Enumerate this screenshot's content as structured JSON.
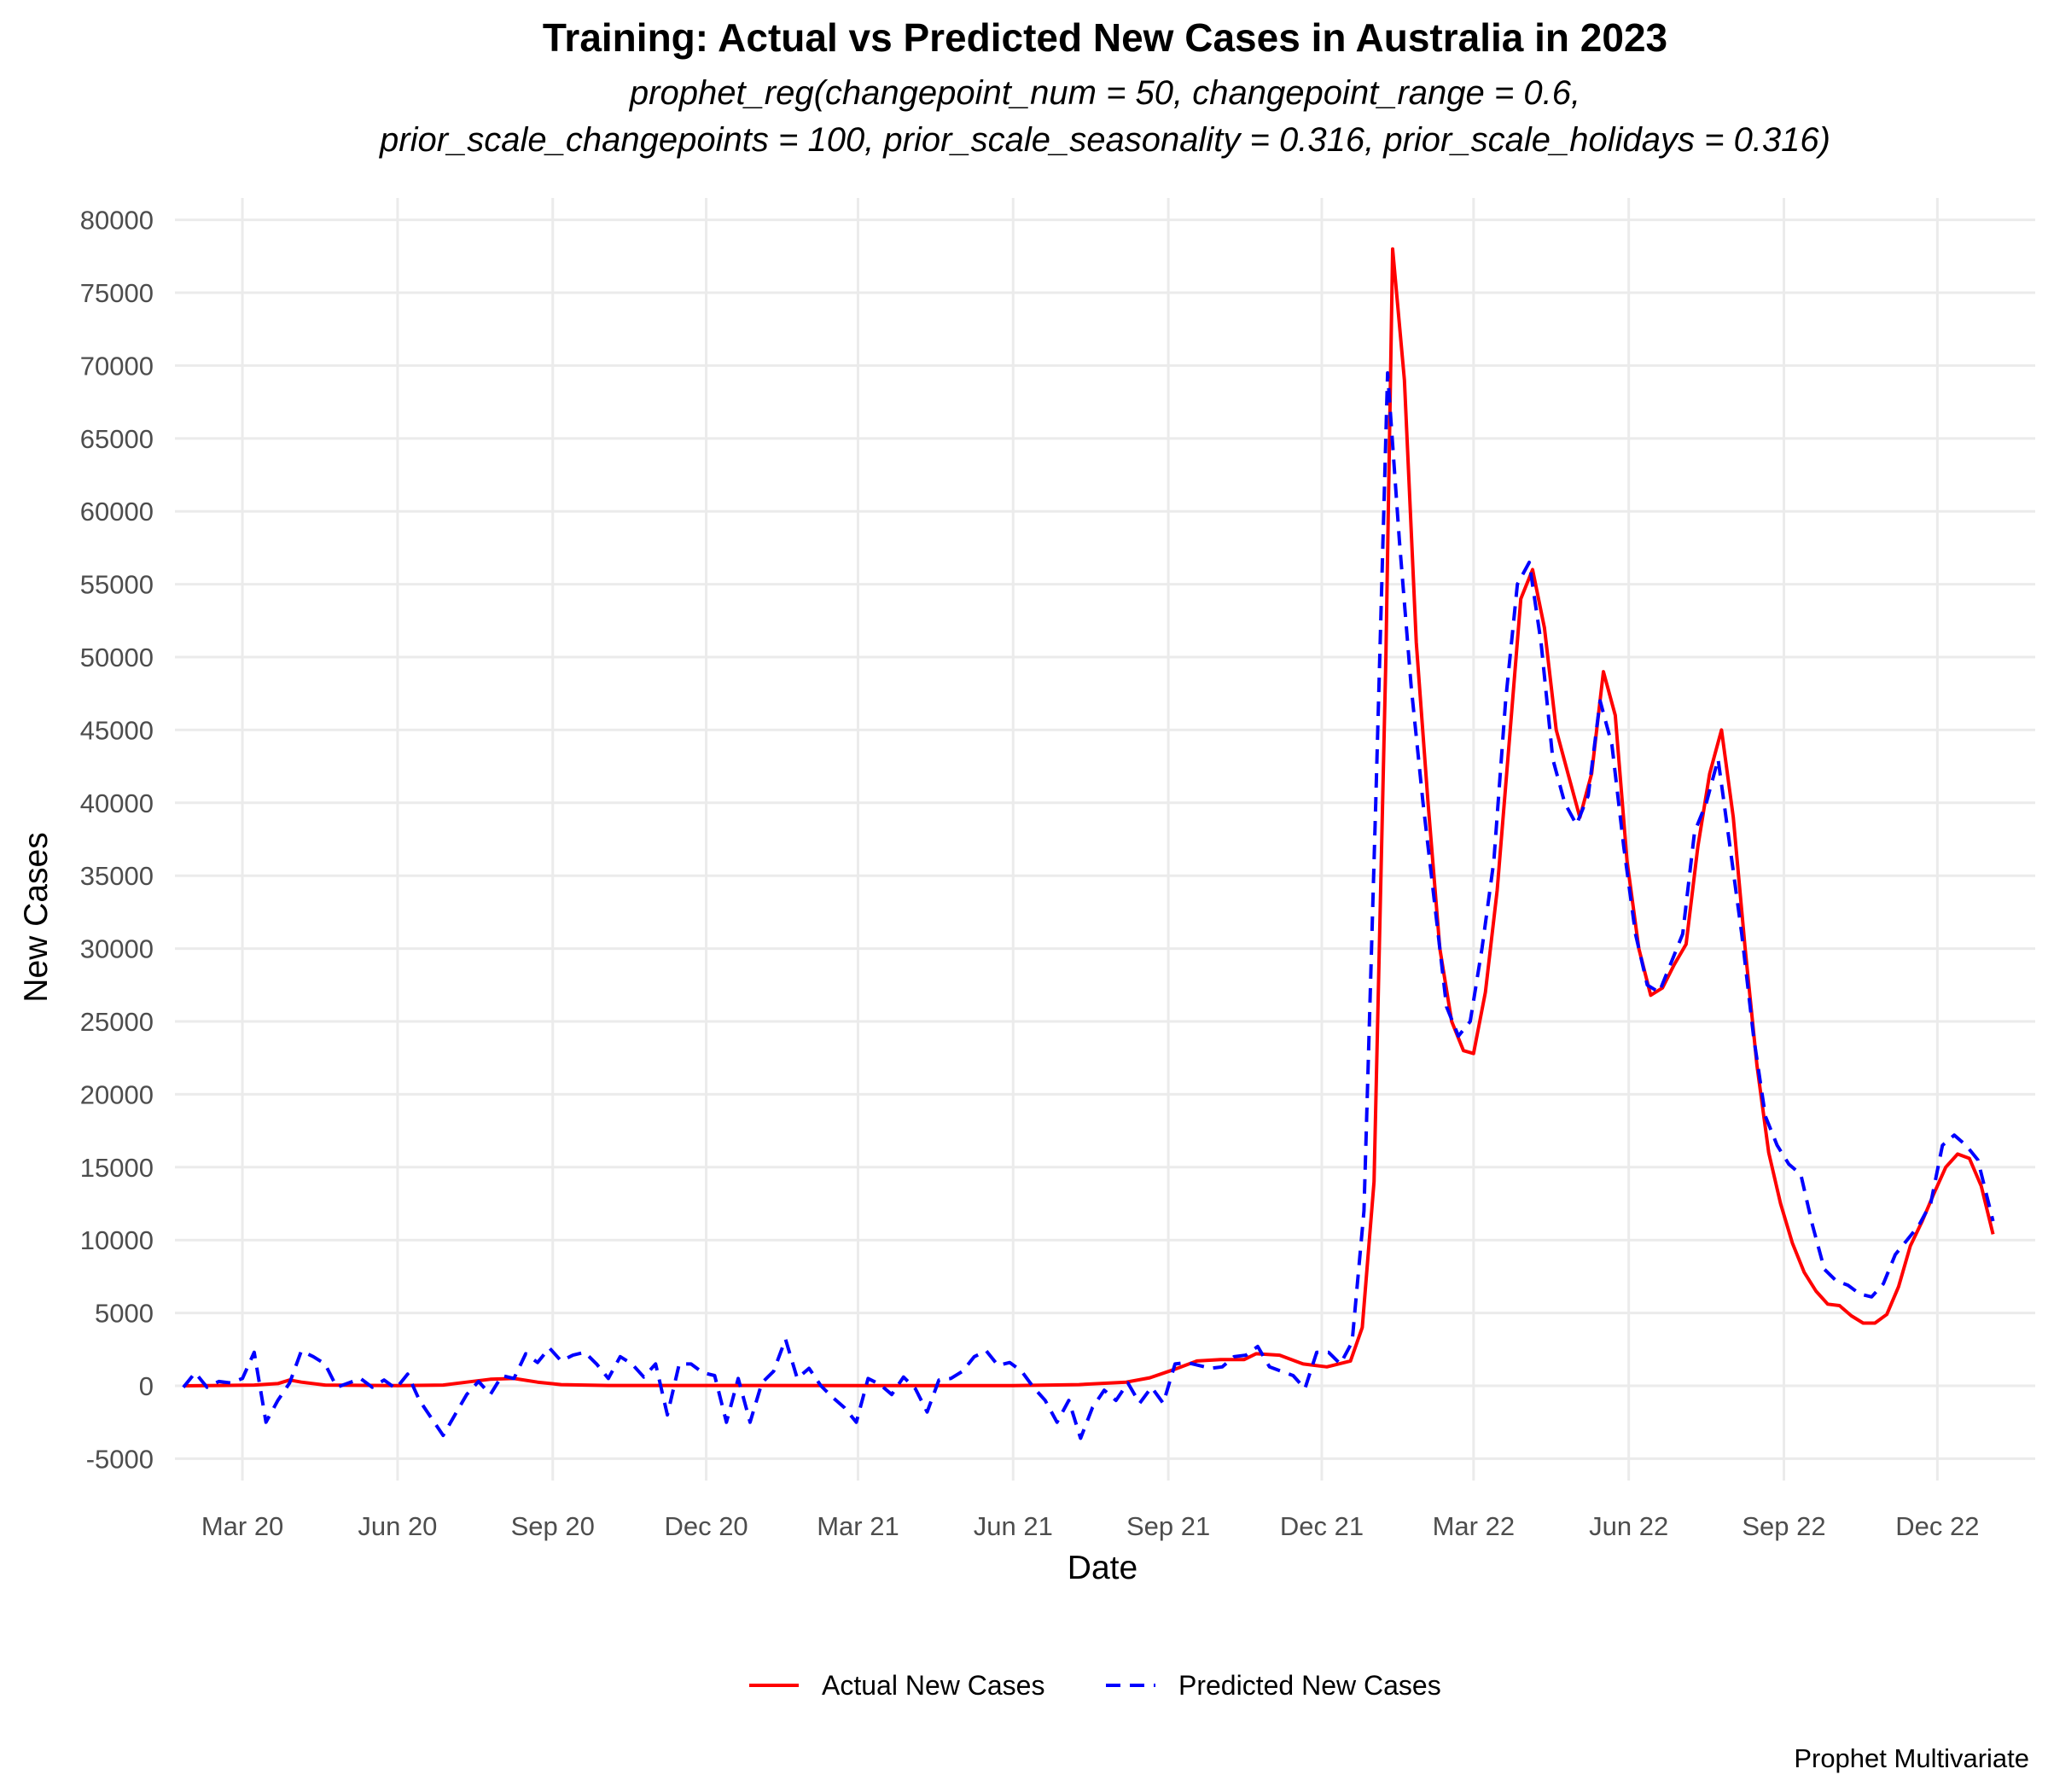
{
  "chart_data": {
    "type": "line",
    "title": "Training: Actual vs Predicted New Cases in Australia in 2023",
    "subtitle_lines": [
      "prophet_reg(changepoint_num = 50, changepoint_range = 0.6,",
      "prior_scale_changepoints = 100, prior_scale_seasonality = 0.316, prior_scale_holidays = 0.316)"
    ],
    "xlabel": "Date",
    "ylabel": "New Cases",
    "caption": "Prophet Multivariate",
    "legend_position": "bottom",
    "grid": true,
    "xlim": [
      "2020-01-21",
      "2023-01-28"
    ],
    "ylim": [
      -6500,
      81500
    ],
    "y_ticks": [
      -5000,
      0,
      5000,
      10000,
      15000,
      20000,
      25000,
      30000,
      35000,
      40000,
      45000,
      50000,
      55000,
      60000,
      65000,
      70000,
      75000,
      80000
    ],
    "x_ticks": [
      {
        "date": "2020-03-01",
        "label": "Mar 20"
      },
      {
        "date": "2020-06-01",
        "label": "Jun 20"
      },
      {
        "date": "2020-09-01",
        "label": "Sep 20"
      },
      {
        "date": "2020-12-01",
        "label": "Dec 20"
      },
      {
        "date": "2021-03-01",
        "label": "Mar 21"
      },
      {
        "date": "2021-06-01",
        "label": "Jun 21"
      },
      {
        "date": "2021-09-01",
        "label": "Sep 21"
      },
      {
        "date": "2021-12-01",
        "label": "Dec 21"
      },
      {
        "date": "2022-03-01",
        "label": "Mar 22"
      },
      {
        "date": "2022-06-01",
        "label": "Jun 22"
      },
      {
        "date": "2022-09-01",
        "label": "Sep 22"
      },
      {
        "date": "2022-12-01",
        "label": "Dec 22"
      }
    ],
    "series": [
      {
        "name": "Actual New Cases",
        "color": "#ff0000",
        "dash": "solid",
        "points": [
          [
            "2020-01-26",
            0
          ],
          [
            "2020-02-16",
            20
          ],
          [
            "2020-03-08",
            50
          ],
          [
            "2020-03-22",
            150
          ],
          [
            "2020-03-29",
            400
          ],
          [
            "2020-04-05",
            250
          ],
          [
            "2020-04-19",
            50
          ],
          [
            "2020-06-01",
            10
          ],
          [
            "2020-06-28",
            50
          ],
          [
            "2020-07-12",
            250
          ],
          [
            "2020-07-26",
            450
          ],
          [
            "2020-08-09",
            500
          ],
          [
            "2020-08-23",
            250
          ],
          [
            "2020-09-06",
            80
          ],
          [
            "2020-10-04",
            20
          ],
          [
            "2021-06-01",
            10
          ],
          [
            "2021-07-10",
            80
          ],
          [
            "2021-08-07",
            250
          ],
          [
            "2021-08-21",
            550
          ],
          [
            "2021-09-04",
            1100
          ],
          [
            "2021-09-18",
            1700
          ],
          [
            "2021-10-02",
            1800
          ],
          [
            "2021-10-16",
            1800
          ],
          [
            "2021-10-23",
            2200
          ],
          [
            "2021-11-06",
            2100
          ],
          [
            "2021-11-20",
            1500
          ],
          [
            "2021-12-04",
            1300
          ],
          [
            "2021-12-18",
            1700
          ],
          [
            "2021-12-25",
            4000
          ],
          [
            "2022-01-01",
            14000
          ],
          [
            "2022-01-08",
            50000
          ],
          [
            "2022-01-12",
            78000
          ],
          [
            "2022-01-19",
            69000
          ],
          [
            "2022-01-26",
            51000
          ],
          [
            "2022-02-02",
            40000
          ],
          [
            "2022-02-09",
            30000
          ],
          [
            "2022-02-16",
            25000
          ],
          [
            "2022-02-23",
            23000
          ],
          [
            "2022-03-01",
            22800
          ],
          [
            "2022-03-08",
            27000
          ],
          [
            "2022-03-15",
            34000
          ],
          [
            "2022-03-22",
            44000
          ],
          [
            "2022-03-29",
            54000
          ],
          [
            "2022-04-05",
            56000
          ],
          [
            "2022-04-12",
            52000
          ],
          [
            "2022-04-19",
            45000
          ],
          [
            "2022-04-26",
            42000
          ],
          [
            "2022-05-03",
            39000
          ],
          [
            "2022-05-10",
            42000
          ],
          [
            "2022-05-17",
            49000
          ],
          [
            "2022-05-24",
            46000
          ],
          [
            "2022-05-31",
            36000
          ],
          [
            "2022-06-07",
            30000
          ],
          [
            "2022-06-14",
            26800
          ],
          [
            "2022-06-21",
            27300
          ],
          [
            "2022-06-28",
            28900
          ],
          [
            "2022-07-05",
            30300
          ],
          [
            "2022-07-12",
            37000
          ],
          [
            "2022-07-19",
            42000
          ],
          [
            "2022-07-26",
            45000
          ],
          [
            "2022-08-02",
            39000
          ],
          [
            "2022-08-09",
            30000
          ],
          [
            "2022-08-16",
            22000
          ],
          [
            "2022-08-23",
            16000
          ],
          [
            "2022-08-30",
            12500
          ],
          [
            "2022-09-06",
            9800
          ],
          [
            "2022-09-13",
            7800
          ],
          [
            "2022-09-20",
            6500
          ],
          [
            "2022-09-27",
            5600
          ],
          [
            "2022-10-04",
            5500
          ],
          [
            "2022-10-11",
            4800
          ],
          [
            "2022-10-18",
            4300
          ],
          [
            "2022-10-25",
            4300
          ],
          [
            "2022-11-01",
            4900
          ],
          [
            "2022-11-08",
            6800
          ],
          [
            "2022-11-15",
            9600
          ],
          [
            "2022-11-22",
            11300
          ],
          [
            "2022-11-29",
            13200
          ],
          [
            "2022-12-06",
            15000
          ],
          [
            "2022-12-13",
            15900
          ],
          [
            "2022-12-20",
            15600
          ],
          [
            "2022-12-27",
            13700
          ],
          [
            "2023-01-03",
            10400
          ]
        ]
      },
      {
        "name": "Predicted New Cases",
        "color": "#0000ff",
        "dash": "dashed",
        "points": [
          [
            "2020-01-26",
            -100
          ],
          [
            "2020-02-02",
            900
          ],
          [
            "2020-02-09",
            -100
          ],
          [
            "2020-02-16",
            300
          ],
          [
            "2020-02-23",
            200
          ],
          [
            "2020-03-01",
            500
          ],
          [
            "2020-03-08",
            2300
          ],
          [
            "2020-03-15",
            -2500
          ],
          [
            "2020-03-22",
            -1000
          ],
          [
            "2020-03-29",
            200
          ],
          [
            "2020-04-05",
            2400
          ],
          [
            "2020-04-12",
            2000
          ],
          [
            "2020-04-19",
            1500
          ],
          [
            "2020-04-26",
            -100
          ],
          [
            "2020-05-03",
            200
          ],
          [
            "2020-05-10",
            500
          ],
          [
            "2020-05-17",
            -100
          ],
          [
            "2020-05-24",
            400
          ],
          [
            "2020-05-31",
            -200
          ],
          [
            "2020-06-07",
            800
          ],
          [
            "2020-06-14",
            -1000
          ],
          [
            "2020-06-21",
            -2200
          ],
          [
            "2020-06-28",
            -3400
          ],
          [
            "2020-07-05",
            -2000
          ],
          [
            "2020-07-12",
            -600
          ],
          [
            "2020-07-19",
            300
          ],
          [
            "2020-07-26",
            -600
          ],
          [
            "2020-08-02",
            700
          ],
          [
            "2020-08-09",
            500
          ],
          [
            "2020-08-16",
            2200
          ],
          [
            "2020-08-23",
            1600
          ],
          [
            "2020-08-30",
            2600
          ],
          [
            "2020-09-06",
            1700
          ],
          [
            "2020-09-13",
            2100
          ],
          [
            "2020-09-20",
            2300
          ],
          [
            "2020-09-27",
            1500
          ],
          [
            "2020-10-04",
            500
          ],
          [
            "2020-10-11",
            2000
          ],
          [
            "2020-10-18",
            1500
          ],
          [
            "2020-10-25",
            600
          ],
          [
            "2020-11-01",
            1500
          ],
          [
            "2020-11-08",
            -2000
          ],
          [
            "2020-11-15",
            1500
          ],
          [
            "2020-11-22",
            1500
          ],
          [
            "2020-11-29",
            900
          ],
          [
            "2020-12-06",
            700
          ],
          [
            "2020-12-13",
            -2500
          ],
          [
            "2020-12-20",
            500
          ],
          [
            "2020-12-27",
            -2500
          ],
          [
            "2021-01-03",
            200
          ],
          [
            "2021-01-10",
            1000
          ],
          [
            "2021-01-17",
            3200
          ],
          [
            "2021-01-24",
            500
          ],
          [
            "2021-01-31",
            1200
          ],
          [
            "2021-02-07",
            0
          ],
          [
            "2021-02-14",
            -800
          ],
          [
            "2021-02-21",
            -1500
          ],
          [
            "2021-02-28",
            -2500
          ],
          [
            "2021-03-07",
            500
          ],
          [
            "2021-03-14",
            100
          ],
          [
            "2021-03-21",
            -600
          ],
          [
            "2021-03-28",
            600
          ],
          [
            "2021-04-04",
            -200
          ],
          [
            "2021-04-11",
            -1800
          ],
          [
            "2021-04-18",
            400
          ],
          [
            "2021-04-25",
            500
          ],
          [
            "2021-05-02",
            1000
          ],
          [
            "2021-05-09",
            2000
          ],
          [
            "2021-05-16",
            2400
          ],
          [
            "2021-05-23",
            1400
          ],
          [
            "2021-05-30",
            1600
          ],
          [
            "2021-06-06",
            1000
          ],
          [
            "2021-06-13",
            -100
          ],
          [
            "2021-06-20",
            -1000
          ],
          [
            "2021-06-27",
            -2500
          ],
          [
            "2021-07-04",
            -1000
          ],
          [
            "2021-07-11",
            -3600
          ],
          [
            "2021-07-18",
            -1500
          ],
          [
            "2021-07-25",
            -300
          ],
          [
            "2021-08-01",
            -1000
          ],
          [
            "2021-08-08",
            200
          ],
          [
            "2021-08-15",
            -1200
          ],
          [
            "2021-08-22",
            -100
          ],
          [
            "2021-08-29",
            -1200
          ],
          [
            "2021-09-05",
            1500
          ],
          [
            "2021-09-12",
            1600
          ],
          [
            "2021-09-19",
            1400
          ],
          [
            "2021-09-26",
            1200
          ],
          [
            "2021-10-03",
            1300
          ],
          [
            "2021-10-10",
            2000
          ],
          [
            "2021-10-17",
            2100
          ],
          [
            "2021-10-24",
            2700
          ],
          [
            "2021-10-31",
            1300
          ],
          [
            "2021-11-07",
            1000
          ],
          [
            "2021-11-14",
            700
          ],
          [
            "2021-11-21",
            -200
          ],
          [
            "2021-11-28",
            2300
          ],
          [
            "2021-12-05",
            2300
          ],
          [
            "2021-12-12",
            1500
          ],
          [
            "2021-12-19",
            3000
          ],
          [
            "2021-12-26",
            12000
          ],
          [
            "2022-01-02",
            40000
          ],
          [
            "2022-01-09",
            69500
          ],
          [
            "2022-01-16",
            58000
          ],
          [
            "2022-01-23",
            48000
          ],
          [
            "2022-01-30",
            40000
          ],
          [
            "2022-02-06",
            33000
          ],
          [
            "2022-02-13",
            26000
          ],
          [
            "2022-02-20",
            24000
          ],
          [
            "2022-02-27",
            25000
          ],
          [
            "2022-03-06",
            30000
          ],
          [
            "2022-03-13",
            36000
          ],
          [
            "2022-03-20",
            47000
          ],
          [
            "2022-03-27",
            55000
          ],
          [
            "2022-04-03",
            56500
          ],
          [
            "2022-04-10",
            51000
          ],
          [
            "2022-04-17",
            43000
          ],
          [
            "2022-04-24",
            40000
          ],
          [
            "2022-05-01",
            38500
          ],
          [
            "2022-05-08",
            40500
          ],
          [
            "2022-05-15",
            47000
          ],
          [
            "2022-05-22",
            44000
          ],
          [
            "2022-05-29",
            37000
          ],
          [
            "2022-06-05",
            31000
          ],
          [
            "2022-06-12",
            27500
          ],
          [
            "2022-06-19",
            27000
          ],
          [
            "2022-06-26",
            29000
          ],
          [
            "2022-07-03",
            31000
          ],
          [
            "2022-07-10",
            38000
          ],
          [
            "2022-07-17",
            40000
          ],
          [
            "2022-07-24",
            43000
          ],
          [
            "2022-07-31",
            37000
          ],
          [
            "2022-08-07",
            31000
          ],
          [
            "2022-08-14",
            24000
          ],
          [
            "2022-08-21",
            18500
          ],
          [
            "2022-08-28",
            16500
          ],
          [
            "2022-09-04",
            15200
          ],
          [
            "2022-09-11",
            14500
          ],
          [
            "2022-09-18",
            11000
          ],
          [
            "2022-09-25",
            8000
          ],
          [
            "2022-10-02",
            7200
          ],
          [
            "2022-10-09",
            6900
          ],
          [
            "2022-10-16",
            6300
          ],
          [
            "2022-10-23",
            6100
          ],
          [
            "2022-10-30",
            7000
          ],
          [
            "2022-11-06",
            9000
          ],
          [
            "2022-11-13",
            10000
          ],
          [
            "2022-11-20",
            11000
          ],
          [
            "2022-11-27",
            12500
          ],
          [
            "2022-12-04",
            16500
          ],
          [
            "2022-12-11",
            17200
          ],
          [
            "2022-12-18",
            16500
          ],
          [
            "2022-12-25",
            15500
          ],
          [
            "2023-01-03",
            11300
          ]
        ]
      }
    ]
  }
}
